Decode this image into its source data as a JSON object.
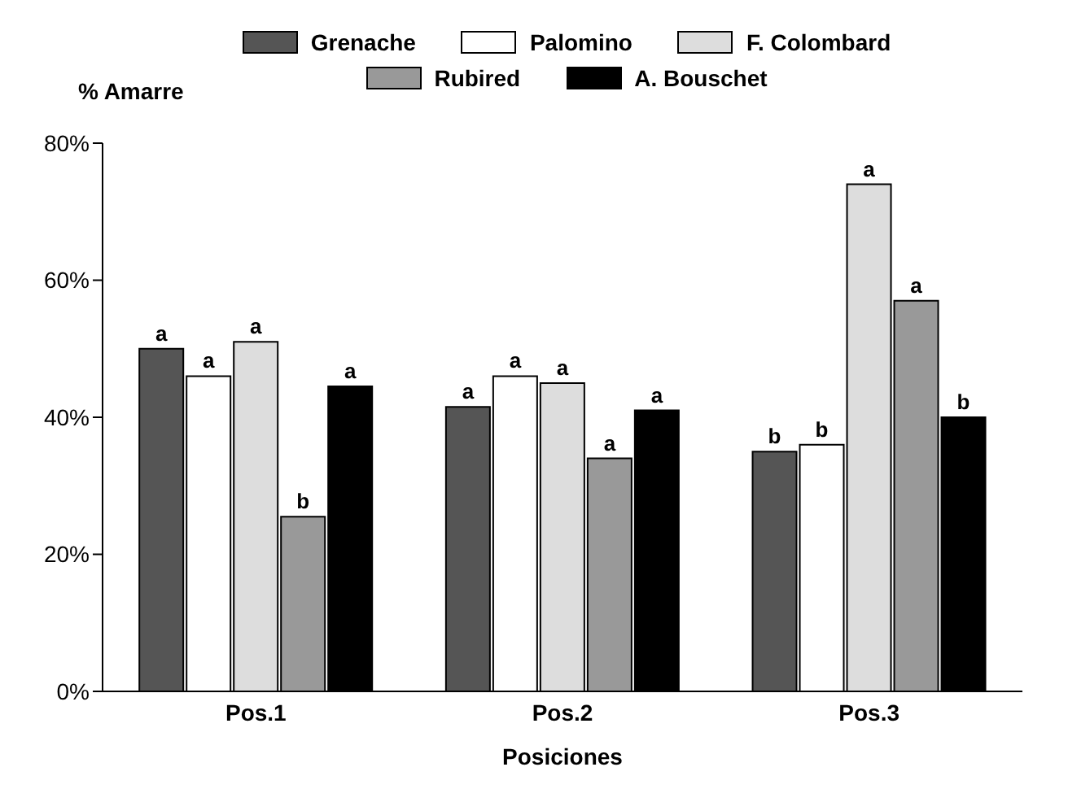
{
  "chart_data": {
    "type": "bar",
    "xlabel": "Posiciones",
    "ylabel": "% Amarre",
    "categories": [
      "Pos.1",
      "Pos.2",
      "Pos.3"
    ],
    "series": [
      {
        "name": "Grenache",
        "color": "#555555",
        "values": [
          50,
          41.5,
          35
        ],
        "value_labels": [
          "a",
          "a",
          "b"
        ]
      },
      {
        "name": "Palomino",
        "color": "#ffffff",
        "values": [
          46,
          46,
          36
        ],
        "value_labels": [
          "a",
          "a",
          "b"
        ]
      },
      {
        "name": "F. Colombard",
        "color": "#dddddd",
        "values": [
          51,
          45,
          74
        ],
        "value_labels": [
          "a",
          "a",
          "a"
        ]
      },
      {
        "name": "Rubired",
        "color": "#999999",
        "values": [
          25.5,
          34,
          57
        ],
        "value_labels": [
          "b",
          "a",
          "a"
        ]
      },
      {
        "name": "A. Bouschet",
        "color": "#000000",
        "values": [
          44.5,
          41,
          40
        ],
        "value_labels": [
          "a",
          "a",
          "b"
        ]
      }
    ],
    "ylim": [
      0,
      80
    ],
    "yticks": [
      {
        "value": 0,
        "label": "0%"
      },
      {
        "value": 20,
        "label": "20%"
      },
      {
        "value": 40,
        "label": "40%"
      },
      {
        "value": 60,
        "label": "60%"
      },
      {
        "value": 80,
        "label": "80%"
      }
    ],
    "legend": "top"
  }
}
